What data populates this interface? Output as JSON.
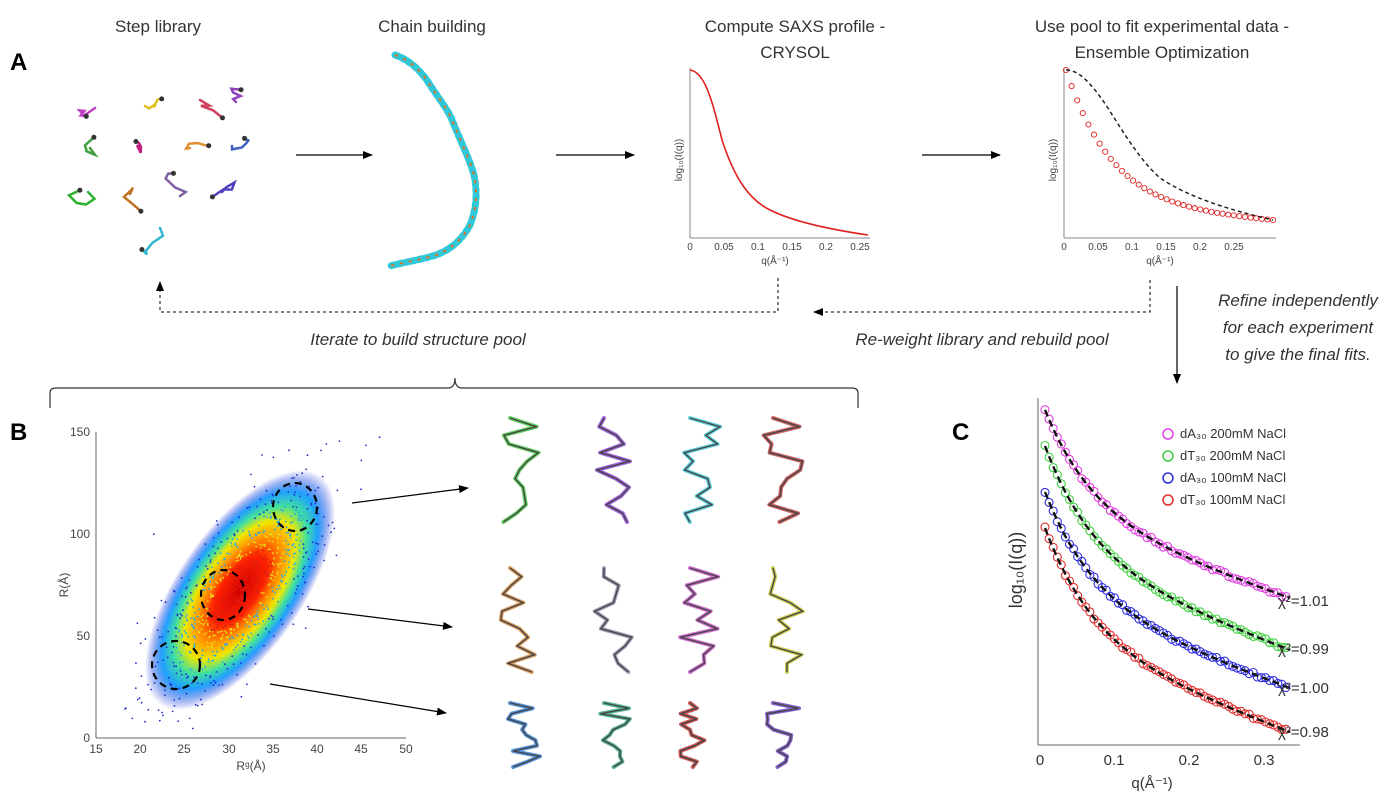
{
  "panels": {
    "a": "A",
    "b": "B",
    "c": "C"
  },
  "stages": {
    "step_library": "Step library",
    "chain_building": "Chain building",
    "compute_line1": "Compute SAXS profile -",
    "compute_line2": "CRYSOL",
    "fit_line1": "Use pool to fit experimental data -",
    "fit_line2": "Ensemble Optimization"
  },
  "loops": {
    "iterate": "Iterate to build structure pool",
    "reweight": "Re-weight library and rebuild pool",
    "refine_line1": "Refine independently",
    "refine_line2": "for each experiment",
    "refine_line3": "to give the final fits."
  },
  "colors": {
    "crysol_curve": "#e02020",
    "fit_curve": "#222222",
    "fit_points": "#e02020",
    "series": [
      "#e040e0",
      "#40d040",
      "#3030e0",
      "#e03030"
    ]
  },
  "icons": [
    "nucleotide-step-icon",
    "chain-structure-icon",
    "ensemble-structure-icon"
  ],
  "crysol_plot": {
    "xlabel": "q(Å⁻¹)",
    "ylabel": "log₁₀(I(q))",
    "xticks": [
      "0",
      "0.05",
      "0.1",
      "0.15",
      "0.2",
      "0.25"
    ]
  },
  "fit_plot": {
    "xlabel": "q(Å⁻¹)",
    "ylabel": "log₁₀(I(q))",
    "xticks": [
      "0",
      "0.05",
      "0.1",
      "0.15",
      "0.2",
      "0.25"
    ]
  },
  "scatter_plot": {
    "xlabel": "Rᵍ(Å)",
    "ylabel": "R(Å)",
    "xticks": [
      "15",
      "20",
      "25",
      "30",
      "35",
      "40",
      "45",
      "50"
    ],
    "yticks": [
      "0",
      "50",
      "100",
      "150"
    ]
  },
  "final_plot": {
    "xlabel": "q(Å⁻¹)",
    "ylabel": "log₁₀(I(q))",
    "xticks": [
      "0",
      "0.1",
      "0.2",
      "0.3"
    ],
    "legend": [
      "dA₃₀ 200mM NaCl",
      "dT₃₀ 200mM NaCl",
      "dA₃₀ 100mM NaCl",
      "dT₃₀ 100mM NaCl"
    ],
    "chi": [
      "χ²=1.01",
      "χ²=0.99",
      "χ²=1.00",
      "χ²=0.98"
    ]
  }
}
